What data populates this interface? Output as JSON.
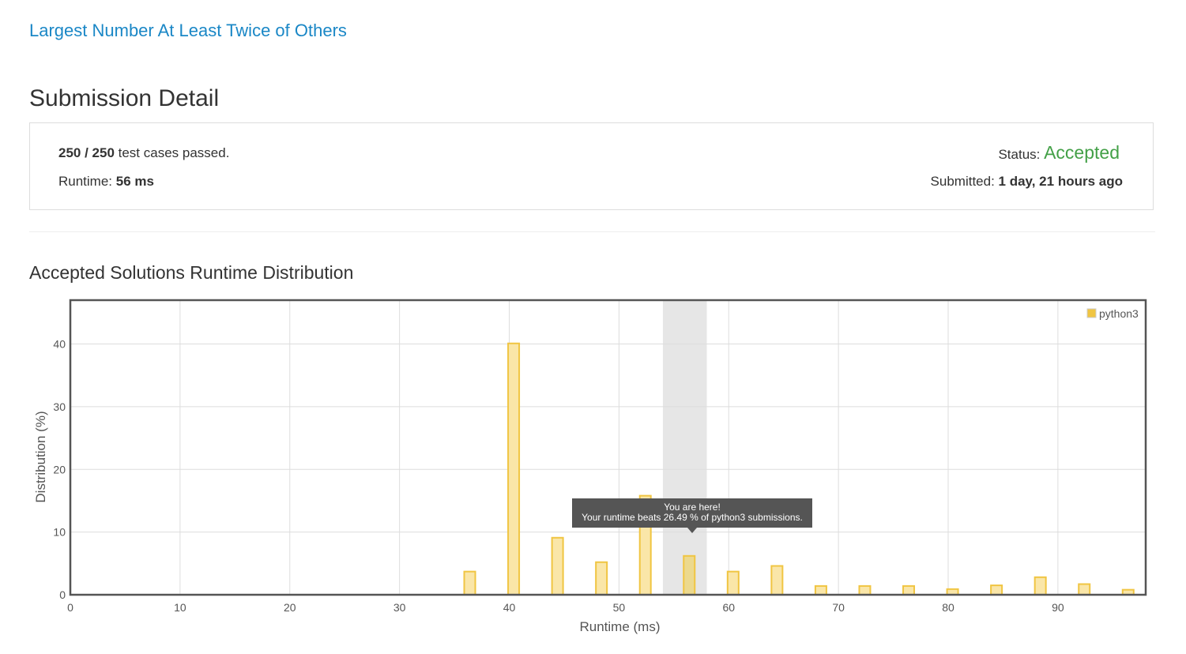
{
  "problem": {
    "title": "Largest Number At Least Twice of Others"
  },
  "page": {
    "title": "Submission Detail"
  },
  "detail": {
    "passed": "250 / 250",
    "passed_suffix": " test cases passed.",
    "runtime_label": "Runtime: ",
    "runtime_value": "56 ms",
    "status_label": "Status: ",
    "status_value": "Accepted",
    "submitted_label": "Submitted: ",
    "submitted_value": "1 day, 21 hours ago"
  },
  "distribution": {
    "title": "Accepted Solutions Runtime Distribution"
  },
  "tooltip": {
    "line1": "You are here!",
    "line2": "Your runtime beats 26.49 % of python3 submissions."
  },
  "chart_data": {
    "type": "bar",
    "xlabel": "Runtime (ms)",
    "ylabel": "Distribution (%)",
    "xlim": [
      0,
      98
    ],
    "ylim": [
      0,
      47
    ],
    "xticks": [
      0,
      10,
      20,
      30,
      40,
      50,
      60,
      70,
      80,
      90
    ],
    "yticks": [
      0,
      10,
      20,
      30,
      40
    ],
    "grid": true,
    "legend_position": "top-right",
    "series": [
      {
        "name": "python3",
        "color": "#f0c542",
        "x": [
          36.4,
          40.4,
          44.4,
          48.4,
          52.4,
          56.4,
          60.4,
          64.4,
          68.4,
          72.4,
          76.4,
          80.4,
          84.4,
          88.4,
          92.4,
          96.4
        ],
        "values": [
          3.7,
          40.1,
          9.1,
          5.2,
          15.8,
          6.2,
          3.7,
          4.6,
          1.4,
          1.4,
          1.4,
          0.9,
          1.5,
          2.8,
          1.7,
          0.8
        ]
      }
    ],
    "highlight": {
      "x_range": [
        54,
        58
      ],
      "color": "#e6e6e6",
      "bar_x": 56.4
    }
  }
}
